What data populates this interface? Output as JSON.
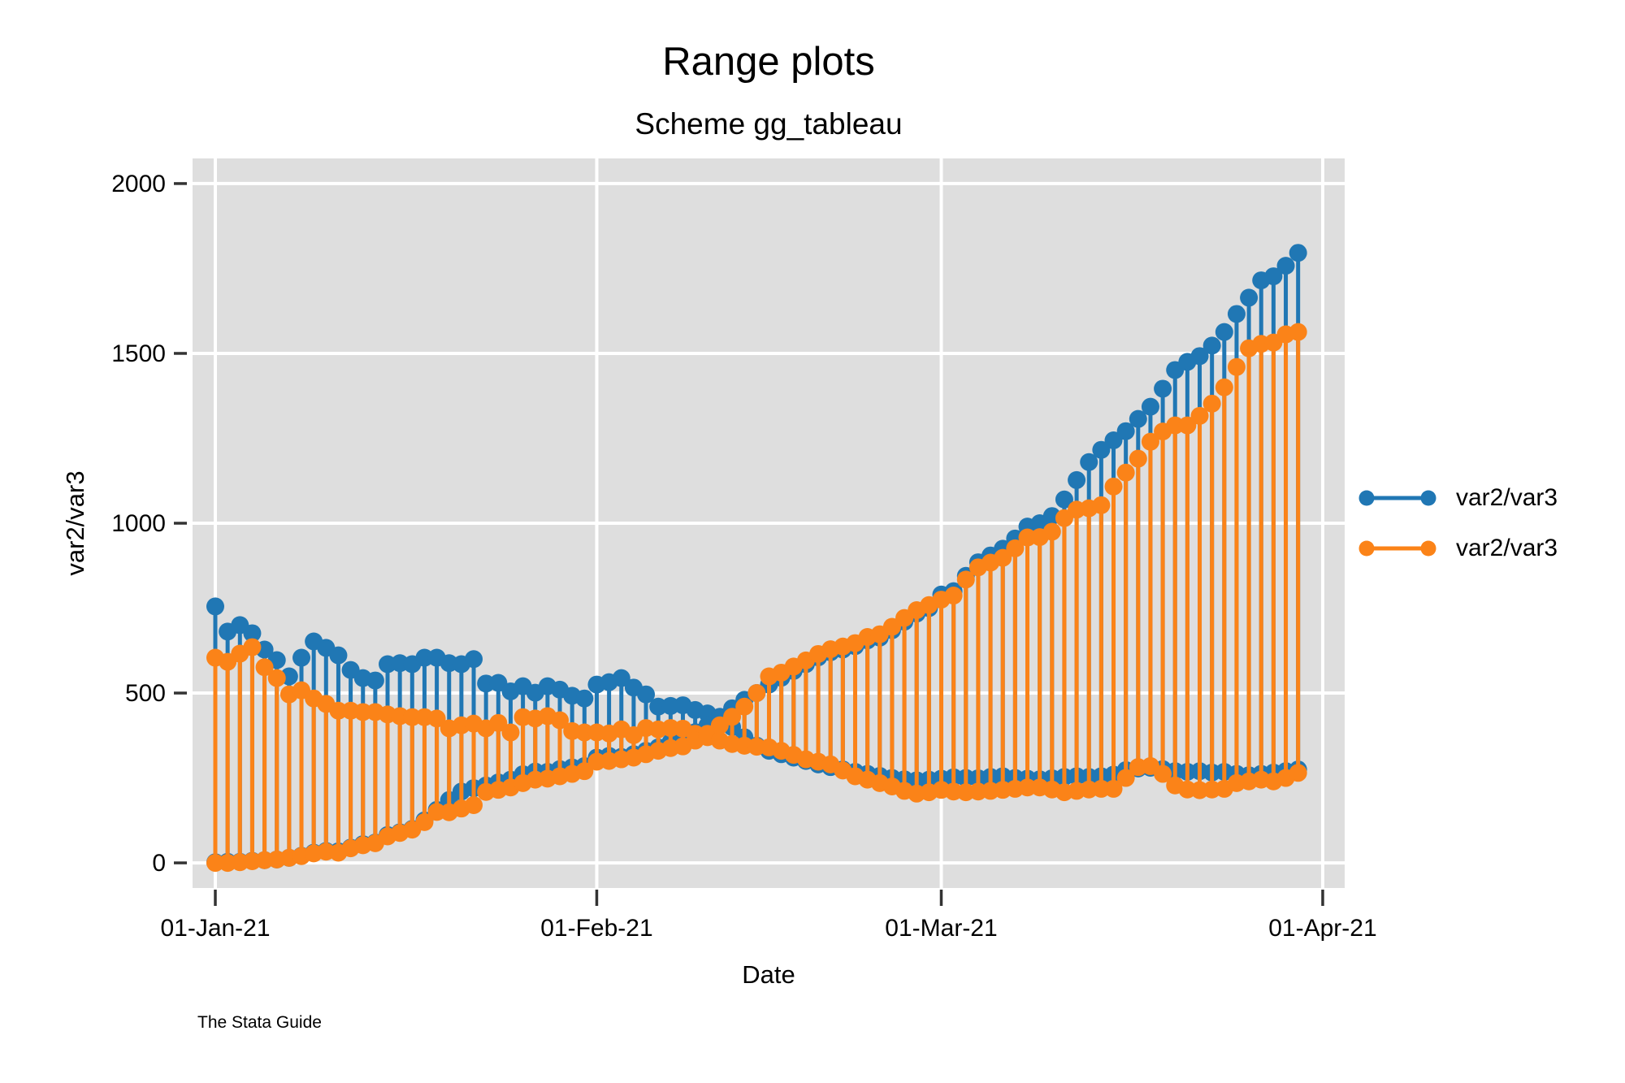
{
  "chart": {
    "title": "Range plots",
    "subtitle": "Scheme gg_tableau",
    "xlabel": "Date",
    "ylabel": "var2/var3",
    "watermark": "The Stata Guide",
    "plot_bg_color": "#dedede",
    "grid_color": "#ffffff",
    "tick_color": "#333333"
  },
  "legend": {
    "items": [
      {
        "label": "var2/var3",
        "color": "#2077b4"
      },
      {
        "label": "var2/var3",
        "color": "#fb8318"
      }
    ]
  },
  "chart_data": {
    "type": "range-spike",
    "title": "Range plots",
    "subtitle": "Scheme gg_tableau",
    "xlabel": "Date",
    "ylabel": "var2/var3",
    "x_unit": "day",
    "x_start": "01-Jan-21",
    "x_end": "30-Mar-21",
    "n_days": 89,
    "x_ticks": [
      {
        "label": "01-Jan-21",
        "day_offset": 0
      },
      {
        "label": "01-Feb-21",
        "day_offset": 31
      },
      {
        "label": "01-Mar-21",
        "day_offset": 59
      },
      {
        "label": "01-Apr-21",
        "day_offset": 90
      }
    ],
    "y_ticks": [
      0,
      500,
      1000,
      1500,
      2000
    ],
    "ylim": [
      -74,
      2074
    ],
    "grid": true,
    "legend_position": "right",
    "marker": "circle",
    "series": [
      {
        "name": "var2/var3",
        "color": "#2077b4",
        "a_values": [
          755,
          681,
          700,
          676,
          628,
          597,
          549,
          604,
          652,
          633,
          611,
          568,
          544,
          537,
          585,
          588,
          585,
          604,
          604,
          588,
          585,
          600,
          528,
          530,
          505,
          520,
          501,
          520,
          510,
          492,
          484,
          525,
          532,
          544,
          516,
          496,
          460,
          462,
          464,
          450,
          440,
          425,
          400,
          370,
          345,
          330,
          320,
          310,
          300,
          290,
          282,
          275,
          268,
          262,
          256,
          250,
          246,
          243,
          245,
          248,
          252,
          250,
          249,
          253,
          255,
          250,
          248,
          246,
          249,
          253,
          255,
          253,
          255,
          260,
          273,
          278,
          280,
          276,
          270,
          268,
          270,
          266,
          268,
          262,
          258,
          262,
          266,
          270,
          275
        ],
        "b_values": [
          2,
          3,
          3,
          6,
          8,
          10,
          15,
          21,
          30,
          35,
          34,
          45,
          55,
          60,
          82,
          90,
          100,
          125,
          156,
          185,
          210,
          220,
          228,
          237,
          245,
          261,
          269,
          268,
          276,
          281,
          285,
          310,
          315,
          312,
          320,
          330,
          340,
          355,
          372,
          385,
          405,
          430,
          455,
          480,
          500,
          525,
          545,
          565,
          585,
          605,
          620,
          628,
          638,
          655,
          663,
          685,
          710,
          734,
          750,
          790,
          800,
          845,
          885,
          905,
          925,
          955,
          990,
          1000,
          1021,
          1070,
          1127,
          1180,
          1216,
          1244,
          1271,
          1307,
          1343,
          1396,
          1451,
          1475,
          1492,
          1523,
          1563,
          1616,
          1664,
          1715,
          1727,
          1758,
          1796
        ]
      },
      {
        "name": "var2/var3",
        "color": "#fb8318",
        "a_values": [
          604,
          592,
          616,
          635,
          576,
          544,
          496,
          508,
          484,
          468,
          448,
          448,
          444,
          444,
          437,
          432,
          429,
          429,
          425,
          396,
          405,
          410,
          396,
          412,
          384,
          429,
          425,
          432,
          420,
          388,
          384,
          384,
          381,
          393,
          376,
          397,
          393,
          397,
          395,
          380,
          370,
          360,
          350,
          345,
          342,
          340,
          330,
          318,
          305,
          298,
          290,
          272,
          255,
          245,
          235,
          225,
          212,
          204,
          208,
          215,
          210,
          208,
          210,
          212,
          215,
          218,
          222,
          222,
          216,
          208,
          212,
          216,
          218,
          218,
          250,
          282,
          285,
          262,
          228,
          216,
          214,
          216,
          218,
          235,
          240,
          245,
          240,
          250,
          265
        ],
        "b_values": [
          0,
          0,
          2,
          5,
          8,
          10,
          15,
          20,
          28,
          33,
          30,
          43,
          52,
          58,
          78,
          88,
          98,
          120,
          150,
          149,
          160,
          170,
          209,
          215,
          222,
          235,
          245,
          248,
          255,
          262,
          270,
          298,
          300,
          305,
          310,
          320,
          330,
          338,
          343,
          360,
          380,
          405,
          430,
          460,
          500,
          549,
          560,
          578,
          596,
          615,
          629,
          637,
          647,
          665,
          673,
          695,
          721,
          744,
          759,
          775,
          787,
          834,
          870,
          884,
          898,
          926,
          958,
          959,
          975,
          1015,
          1040,
          1044,
          1053,
          1108,
          1149,
          1190,
          1240,
          1270,
          1288,
          1288,
          1316,
          1352,
          1400,
          1460,
          1515,
          1528,
          1532,
          1556,
          1563
        ]
      }
    ]
  }
}
